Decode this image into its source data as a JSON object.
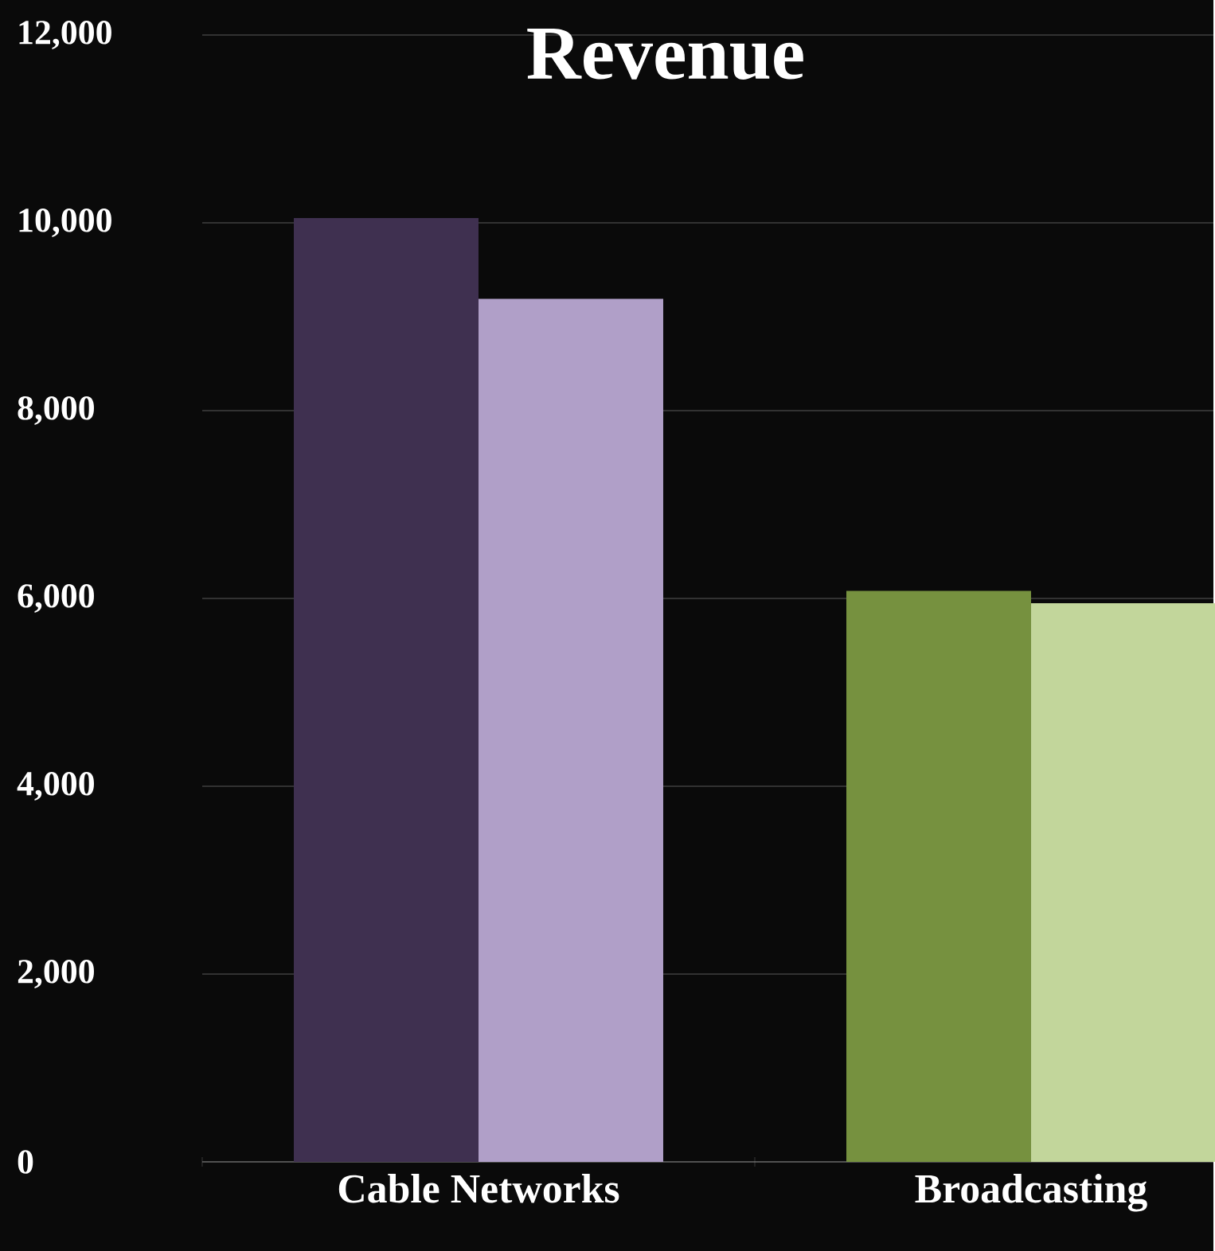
{
  "chart_data": {
    "type": "bar",
    "title": "Revenue",
    "categories": [
      "Cable Networks",
      "Broadcasting"
    ],
    "series": [
      {
        "values": [
          10050,
          6080
        ],
        "colors": [
          "#3f3050",
          "#76913f"
        ]
      },
      {
        "values": [
          9190,
          5950
        ],
        "colors": [
          "#b09fc8",
          "#c2d69b"
        ]
      }
    ],
    "ylim": [
      0,
      12000
    ],
    "yticks": [
      {
        "value": 0,
        "label": "0"
      },
      {
        "value": 2000,
        "label": "2,000"
      },
      {
        "value": 4000,
        "label": "4,000"
      },
      {
        "value": 6000,
        "label": "6,000"
      },
      {
        "value": 8000,
        "label": "8,000"
      },
      {
        "value": 10000,
        "label": "10,000"
      },
      {
        "value": 12000,
        "label": "12,000"
      }
    ],
    "grid": "y"
  }
}
